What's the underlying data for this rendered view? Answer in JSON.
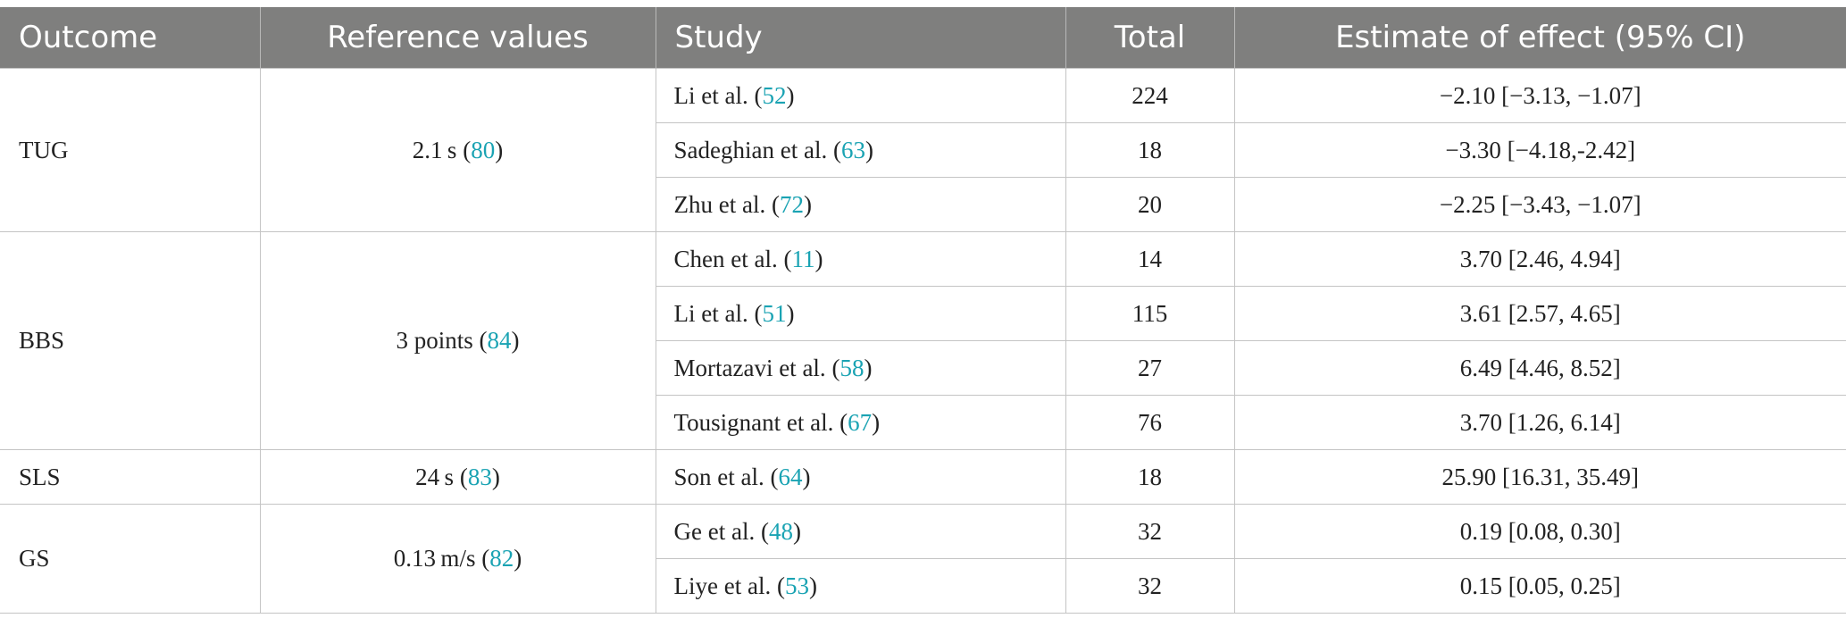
{
  "table": {
    "headers": [
      "Outcome",
      "Reference values",
      "Study",
      "Total",
      "Estimate of effect (95% CI)"
    ],
    "groups": [
      {
        "outcome": "TUG",
        "reference": {
          "text": "2.1 s",
          "cite": "80"
        },
        "rows": [
          {
            "study": "Li et al.",
            "cite": "52",
            "total": "224",
            "estimate": "−2.10 [−3.13, −1.07]"
          },
          {
            "study": "Sadeghian et al.",
            "cite": "63",
            "total": "18",
            "estimate": "−3.30 [−4.18,-2.42]"
          },
          {
            "study": "Zhu et al.",
            "cite": "72",
            "total": "20",
            "estimate": "−2.25 [−3.43, −1.07]"
          }
        ]
      },
      {
        "outcome": "BBS",
        "reference": {
          "text": "3 points",
          "cite": "84"
        },
        "rows": [
          {
            "study": "Chen et al.",
            "cite": "11",
            "total": "14",
            "estimate": "3.70 [2.46, 4.94]"
          },
          {
            "study": "Li et al.",
            "cite": "51",
            "total": "115",
            "estimate": "3.61 [2.57, 4.65]"
          },
          {
            "study": "Mortazavi et al.",
            "cite": "58",
            "total": "27",
            "estimate": "6.49 [4.46, 8.52]"
          },
          {
            "study": "Tousignant et al.",
            "cite": "67",
            "total": "76",
            "estimate": "3.70 [1.26, 6.14]"
          }
        ]
      },
      {
        "outcome": "SLS",
        "reference": {
          "text": "24 s",
          "cite": "83"
        },
        "rows": [
          {
            "study": "Son et al.",
            "cite": "64",
            "total": "18",
            "estimate": "25.90 [16.31, 35.49]"
          }
        ]
      },
      {
        "outcome": "GS",
        "reference": {
          "text": "0.13 m/s",
          "cite": "82"
        },
        "rows": [
          {
            "study": "Ge et al.",
            "cite": "48",
            "total": "32",
            "estimate": "0.19 [0.08, 0.30]"
          },
          {
            "study": "Liye et al.",
            "cite": "53",
            "total": "32",
            "estimate": "0.15 [0.05, 0.25]"
          }
        ]
      }
    ]
  },
  "colors": {
    "header_bg": "#7f7f7e",
    "header_text": "#ffffff",
    "citation": "#1aa3b3",
    "border": "#c4c4c4"
  }
}
